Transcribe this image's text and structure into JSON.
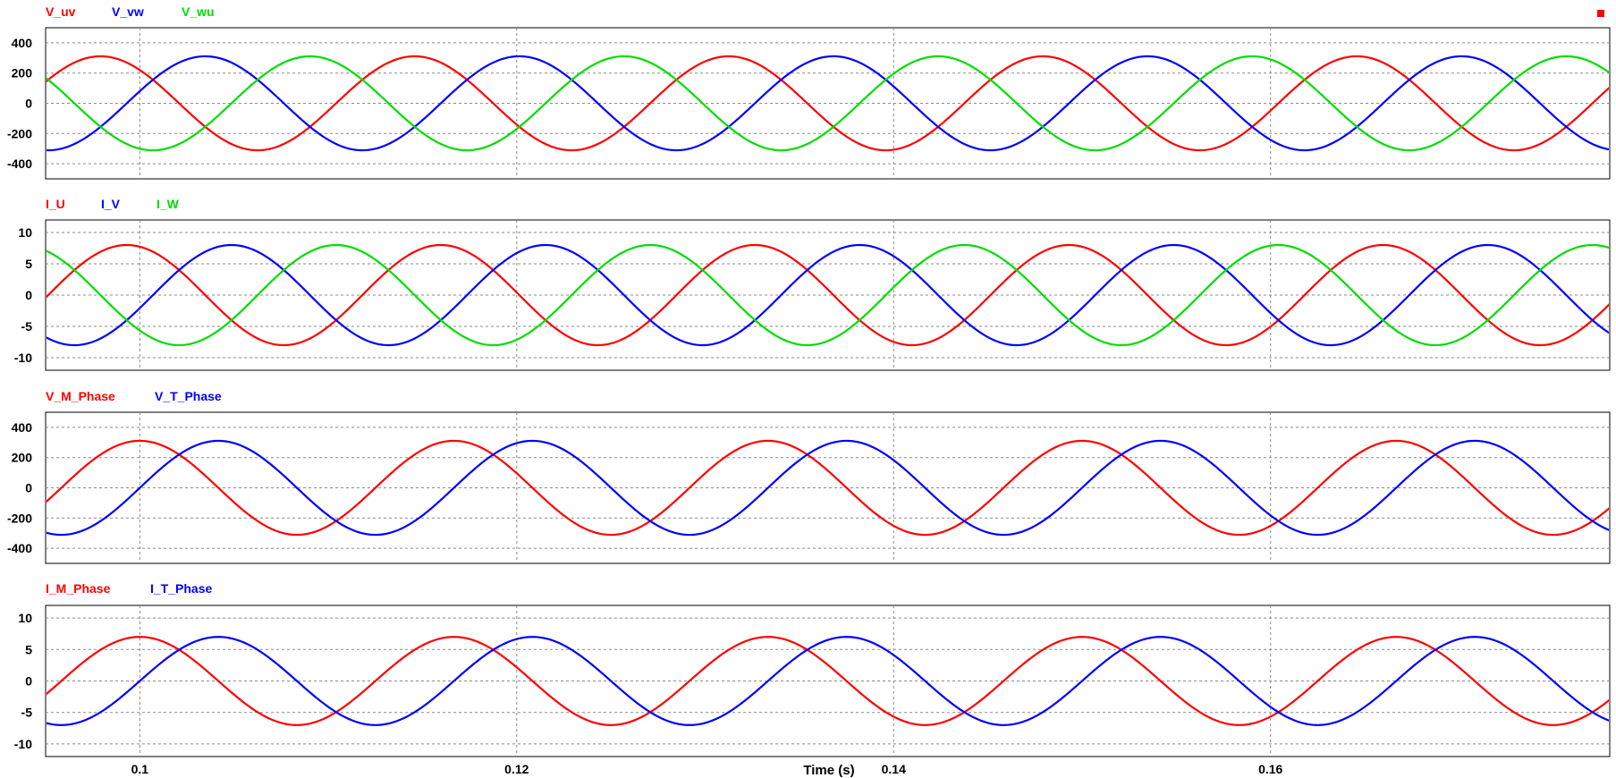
{
  "window": {
    "corner_marker_color": "#ff0000"
  },
  "chart_data": [
    {
      "type": "line",
      "panel": "voltage-line",
      "x_range": [
        0.095,
        0.178
      ],
      "ylim": [
        -500,
        500
      ],
      "yticks": [
        400,
        200,
        0,
        -200,
        -400
      ],
      "grid": true,
      "amplitude": 311,
      "frequency_hz": 60,
      "series": [
        {
          "name": "V_uv",
          "color": "#ff0000",
          "phase_deg": 45
        },
        {
          "name": "V_vw",
          "color": "#0000ff",
          "phase_deg": -75
        },
        {
          "name": "V_wu",
          "color": "#00dd00",
          "phase_deg": 165
        }
      ]
    },
    {
      "type": "line",
      "panel": "current-line",
      "x_range": [
        0.095,
        0.178
      ],
      "ylim": [
        -12,
        12
      ],
      "yticks": [
        10,
        5,
        0,
        -5,
        -10
      ],
      "grid": true,
      "amplitude": 8,
      "frequency_hz": 60,
      "series": [
        {
          "name": "I_U",
          "color": "#ff0000",
          "phase_deg": 15
        },
        {
          "name": "I_V",
          "color": "#0000ff",
          "phase_deg": -105
        },
        {
          "name": "I_W",
          "color": "#00dd00",
          "phase_deg": 135
        }
      ]
    },
    {
      "type": "line",
      "panel": "voltage-phase",
      "x_range": [
        0.095,
        0.178
      ],
      "ylim": [
        -500,
        500
      ],
      "yticks": [
        400,
        200,
        0,
        -200,
        -400
      ],
      "grid": true,
      "amplitude": 311,
      "frequency_hz": 60,
      "series": [
        {
          "name": "V_M_Phase",
          "color": "#ff0000",
          "phase_deg": 0
        },
        {
          "name": "V_T_Phase",
          "color": "#0000ff",
          "phase_deg": -90
        }
      ]
    },
    {
      "type": "line",
      "panel": "current-phase",
      "x_range": [
        0.095,
        0.178
      ],
      "ylim": [
        -12,
        12
      ],
      "yticks": [
        10,
        5,
        0,
        -5,
        -10
      ],
      "grid": true,
      "amplitude": 7,
      "frequency_hz": 60,
      "series": [
        {
          "name": "I_M_Phase",
          "color": "#ff0000",
          "phase_deg": 0
        },
        {
          "name": "I_T_Phase",
          "color": "#0000ff",
          "phase_deg": -90
        }
      ]
    }
  ],
  "x_axis": {
    "label": "Time (s)",
    "ticks": [
      {
        "value": 0.1,
        "label": "0.1"
      },
      {
        "value": 0.12,
        "label": "0.12"
      },
      {
        "value": 0.14,
        "label": "0.14"
      },
      {
        "value": 0.16,
        "label": "0.16"
      }
    ]
  }
}
